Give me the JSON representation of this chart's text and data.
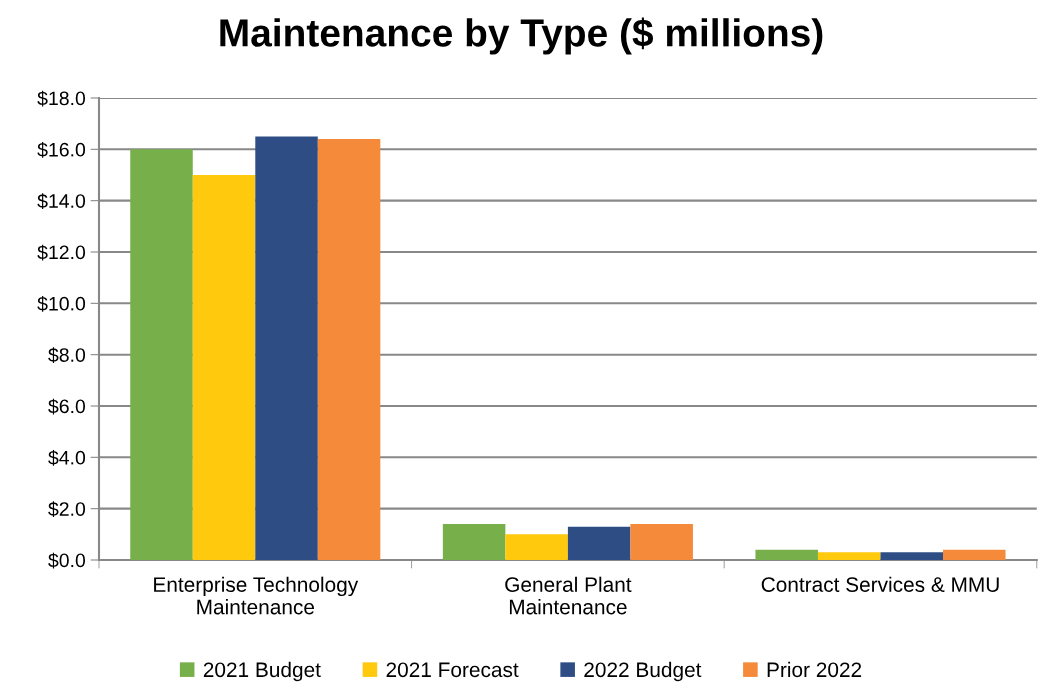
{
  "chart_data": {
    "type": "bar",
    "title": "Maintenance by Type ($ millions)",
    "categories": [
      "Enterprise Technology\nMaintenance",
      "General Plant\nMaintenance",
      "Contract Services & MMU"
    ],
    "series": [
      {
        "name": "2021 Budget",
        "color": "#77b04b",
        "values": [
          16.0,
          1.4,
          0.4
        ]
      },
      {
        "name": "2021 Forecast",
        "color": "#ffc90e",
        "values": [
          15.0,
          1.0,
          0.3
        ]
      },
      {
        "name": "2022 Budget",
        "color": "#2e4d85",
        "values": [
          16.5,
          1.3,
          0.3
        ]
      },
      {
        "name": "Prior 2022",
        "color": "#f58a3a",
        "values": [
          16.4,
          1.4,
          0.4
        ]
      }
    ],
    "ylim": [
      0,
      18
    ],
    "yticks": [
      {
        "value": 0,
        "label": "$0.0"
      },
      {
        "value": 2,
        "label": "$2.0"
      },
      {
        "value": 4,
        "label": "$4.0"
      },
      {
        "value": 6,
        "label": "$6.0"
      },
      {
        "value": 8,
        "label": "$8.0"
      },
      {
        "value": 10,
        "label": "$10.0"
      },
      {
        "value": 12,
        "label": "$12.0"
      },
      {
        "value": 14,
        "label": "$14.0"
      },
      {
        "value": 16,
        "label": "$16.0"
      },
      {
        "value": 18,
        "label": "$18.0"
      }
    ],
    "grid": "y",
    "legend": "bottom"
  }
}
